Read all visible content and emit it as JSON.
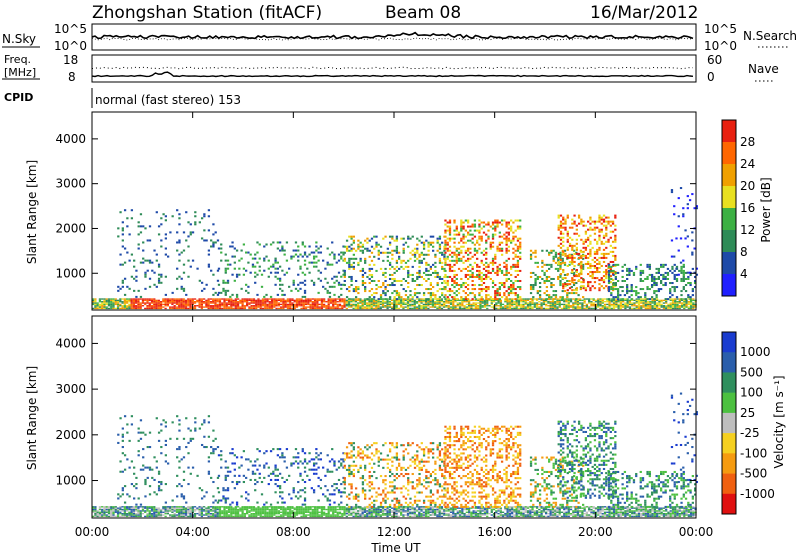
{
  "header": {
    "station": "Zhongshan Station (fitACF)",
    "beam": "Beam 08",
    "date": "16/Mar/2012"
  },
  "panels": {
    "nsky": {
      "label": "N.Sky",
      "ticks": [
        "10^5",
        "10^0"
      ],
      "right_ticks": [
        "10^5",
        "10^0"
      ],
      "right_label": "N.Search"
    },
    "freq": {
      "label_top": "Freq.",
      "label_unit": "[MHz]",
      "ticks": [
        "18",
        "8"
      ],
      "right_ticks": [
        "60",
        "0"
      ],
      "right_label": "Nave"
    },
    "cpid": {
      "label": "CPID",
      "mode": "normal (fast stereo) 153"
    }
  },
  "chart_data": [
    {
      "type": "heatmap",
      "name": "power",
      "xlabel": "",
      "ylabel": "Slant Range [km]",
      "ylim": [
        180,
        4600
      ],
      "yticks": [
        "1000",
        "2000",
        "3000",
        "4000"
      ],
      "colorbar_label": "Power [dB]",
      "colorbar_ticks": [
        "4",
        "8",
        "12",
        "16",
        "20",
        "24",
        "28"
      ],
      "colors": [
        "#2020ff",
        "#1e4aa8",
        "#2e8b57",
        "#3cb043",
        "#e8e020",
        "#f0a000",
        "#ff6600",
        "#e82010"
      ],
      "data_ranges_hours": [
        [
          0,
          24
        ]
      ]
    },
    {
      "type": "heatmap",
      "name": "velocity",
      "xlabel": "Time UT",
      "ylabel": "Slant Range [km]",
      "ylim": [
        180,
        4600
      ],
      "yticks": [
        "1000",
        "2000",
        "3000",
        "4000"
      ],
      "xticks": [
        "00:00",
        "04:00",
        "08:00",
        "12:00",
        "16:00",
        "20:00",
        "00:00"
      ],
      "colorbar_label": "Velocity [m s⁻¹]",
      "colorbar_ticks": [
        "1000",
        "500",
        "100",
        "25",
        "-25",
        "-100",
        "-500",
        "-1000"
      ],
      "colors": [
        "#1a3ccf",
        "#2a5eab",
        "#2f8f5e",
        "#4cc040",
        "#bebebe",
        "#f5d020",
        "#f59b10",
        "#f06010",
        "#e01010"
      ]
    }
  ]
}
